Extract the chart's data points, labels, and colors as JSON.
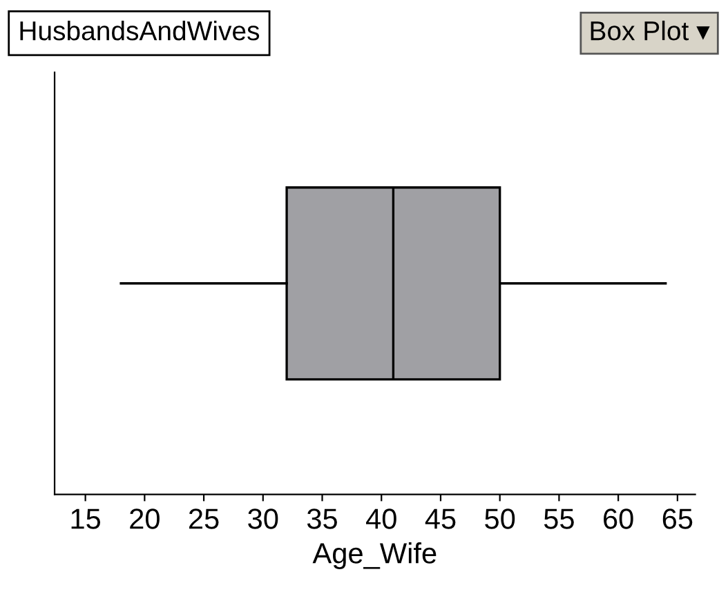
{
  "chart_data": {
    "type": "box",
    "title": "HusbandsAndWives",
    "xlabel": "Age_Wife",
    "orientation": "horizontal",
    "categories": [
      null
    ],
    "boxes": [
      {
        "low": 18,
        "q1": 32,
        "median": 41,
        "q3": 50,
        "high": 64
      }
    ],
    "color": "#a0a0a4",
    "xlim": [
      12.4,
      66.5
    ],
    "xticks": [
      15,
      20,
      25,
      30,
      35,
      40,
      45,
      50,
      55,
      60,
      65
    ],
    "tick_labels": "x",
    "grid": false,
    "annotations": [
      "Box Plot ▾"
    ]
  }
}
